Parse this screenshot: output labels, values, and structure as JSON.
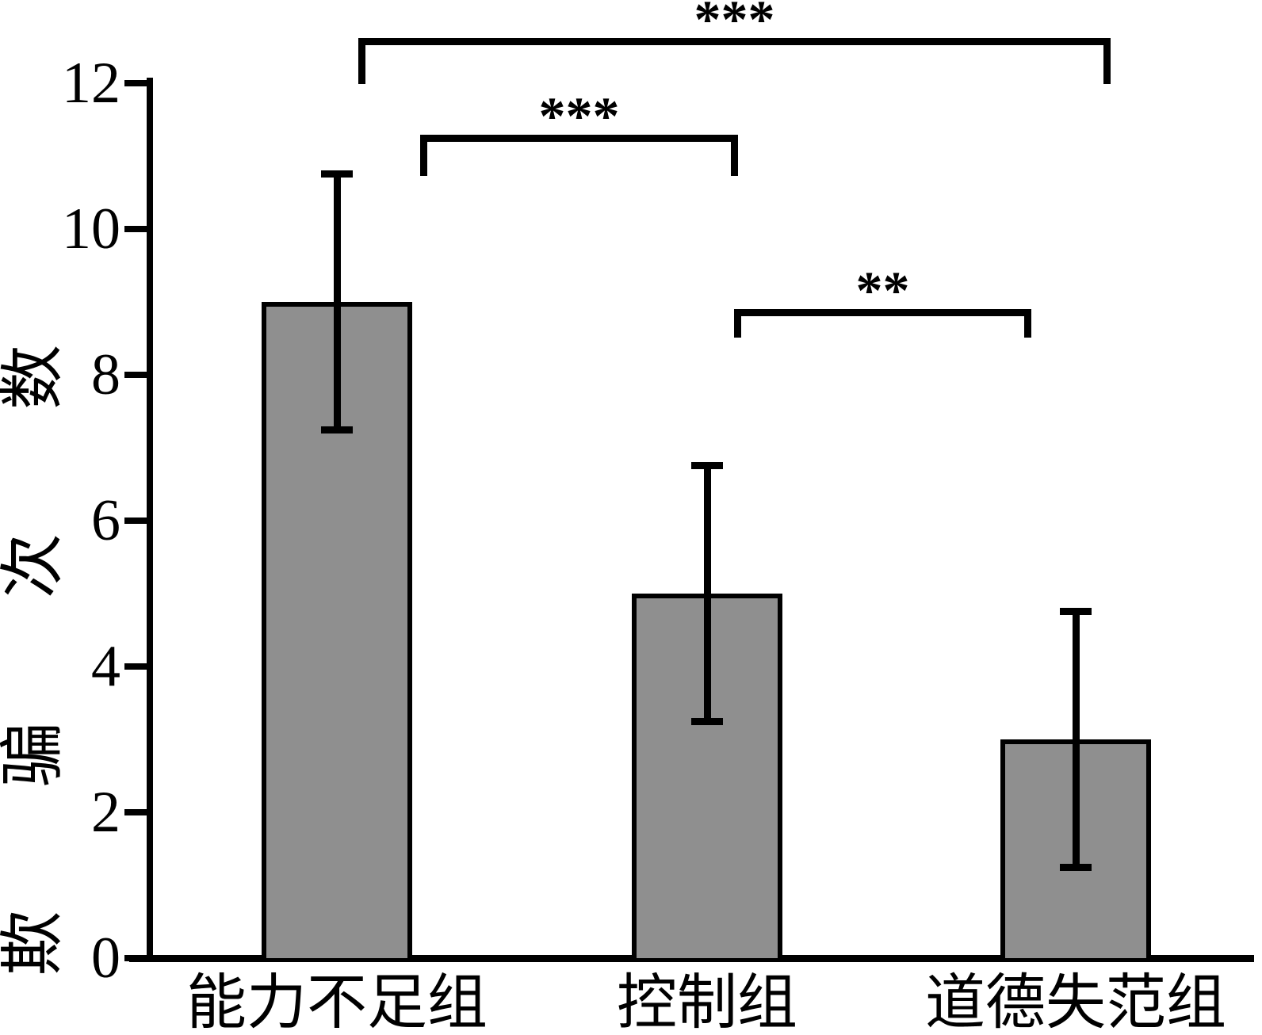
{
  "figure": {
    "background": "#FFFFFF"
  },
  "chart_data": {
    "type": "bar",
    "title": "",
    "xlabel": "",
    "ylabel": "欺骗次数",
    "categories": [
      "能力不足组",
      "控制组",
      "道德失范组"
    ],
    "values": [
      9.0,
      5.0,
      3.0
    ],
    "error_bars": [
      1.76,
      1.76,
      1.76
    ],
    "ylim": [
      0,
      12
    ],
    "yticks": [
      0,
      2,
      4,
      6,
      8,
      10,
      12
    ],
    "grid": false,
    "legend": "none",
    "bar_fill_color": "#8F8F8F",
    "bar_edge_color": "#000000",
    "axis_color": "#000000",
    "significance": [
      {
        "from": 0,
        "to": 2,
        "label": "***"
      },
      {
        "from": 0,
        "to": 1,
        "label": "***"
      },
      {
        "from": 1,
        "to": 2,
        "label": "**"
      }
    ]
  }
}
